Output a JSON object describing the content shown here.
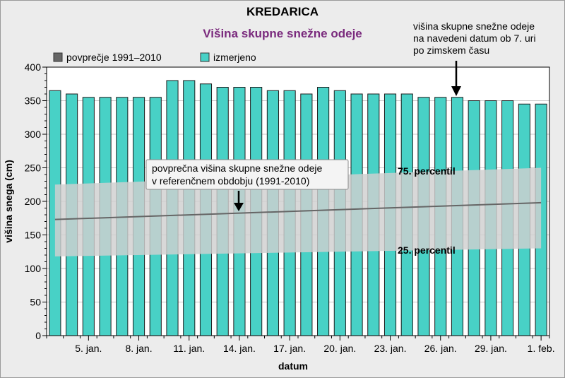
{
  "chart_data": {
    "type": "bar",
    "title": "KREDARICA",
    "subtitle": "Višina skupne snežne odeje",
    "xlabel": "datum",
    "ylabel": "višina snega (cm)",
    "ylim": [
      0,
      400
    ],
    "yticks": [
      0,
      50,
      100,
      150,
      200,
      250,
      300,
      350,
      400
    ],
    "grid": true,
    "legend_position": "top-left",
    "x_tick_labels": [
      {
        "index": 2,
        "label": "5. jan."
      },
      {
        "index": 5,
        "label": "8. jan."
      },
      {
        "index": 8,
        "label": "11. jan."
      },
      {
        "index": 11,
        "label": "14. jan."
      },
      {
        "index": 14,
        "label": "17. jan."
      },
      {
        "index": 17,
        "label": "20. jan."
      },
      {
        "index": 20,
        "label": "23. jan."
      },
      {
        "index": 23,
        "label": "26. jan."
      },
      {
        "index": 26,
        "label": "29. jan."
      },
      {
        "index": 29,
        "label": "1. feb."
      }
    ],
    "series": [
      {
        "name": "izmerjeno",
        "color": "#48d1c6",
        "values": [
          365,
          360,
          355,
          355,
          355,
          355,
          355,
          380,
          380,
          375,
          370,
          370,
          370,
          365,
          365,
          360,
          370,
          365,
          360,
          360,
          360,
          360,
          355,
          355,
          355,
          350,
          350,
          350,
          345,
          345
        ]
      },
      {
        "name": "povprečje 1991–2010",
        "color": "#666666",
        "type": "line",
        "start": 173,
        "end": 198
      }
    ],
    "band": {
      "upper_start": 225,
      "upper_end": 250,
      "lower_start": 118,
      "lower_end": 130
    },
    "annotations": {
      "top_note": "višina skupne snežne odeje\nna navedeni datum ob 7. uri\npo zimskem času",
      "avg_box": "povprečna višina skupne snežne odeje\nv referenčnem obdobju (1991-2010)",
      "p75": "75. percentil",
      "p25": "25. percentil"
    }
  }
}
